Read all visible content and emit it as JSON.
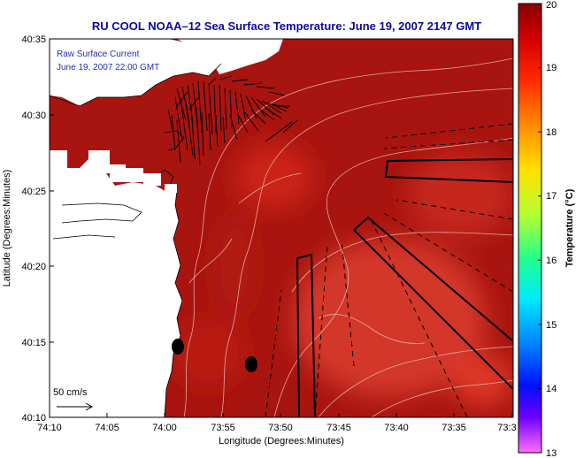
{
  "title": "RU COOL   NOAA–12  Sea Surface Temperature:  June 19, 2007 2147 GMT",
  "legend": {
    "line1": "Raw Surface Current",
    "line2": "June 19, 2007 22:00 GMT"
  },
  "scale_label": "50 cm/s",
  "axes": {
    "xlabel": "Longitude (Degrees:Minutes)",
    "ylabel": "Latitude (Degrees:Minutes)",
    "x_ticks": [
      "74:10",
      "74:05",
      "74:00",
      "73:55",
      "73:50",
      "73:45",
      "73:40",
      "73:35",
      "73:3"
    ],
    "y_ticks": [
      "40:35",
      "40:30",
      "40:25",
      "40:20",
      "40:15",
      "40:10"
    ]
  },
  "colorbar": {
    "label": "Temperature (°C)",
    "min": 13,
    "max": 20,
    "ticks": [
      "20",
      "19",
      "18",
      "17",
      "16",
      "15",
      "14",
      "13"
    ]
  },
  "colors": {
    "sst_warm": "#a8140f",
    "sst_mid": "#c41a12",
    "land": "#ffffff",
    "title": "#0a0a9a"
  }
}
